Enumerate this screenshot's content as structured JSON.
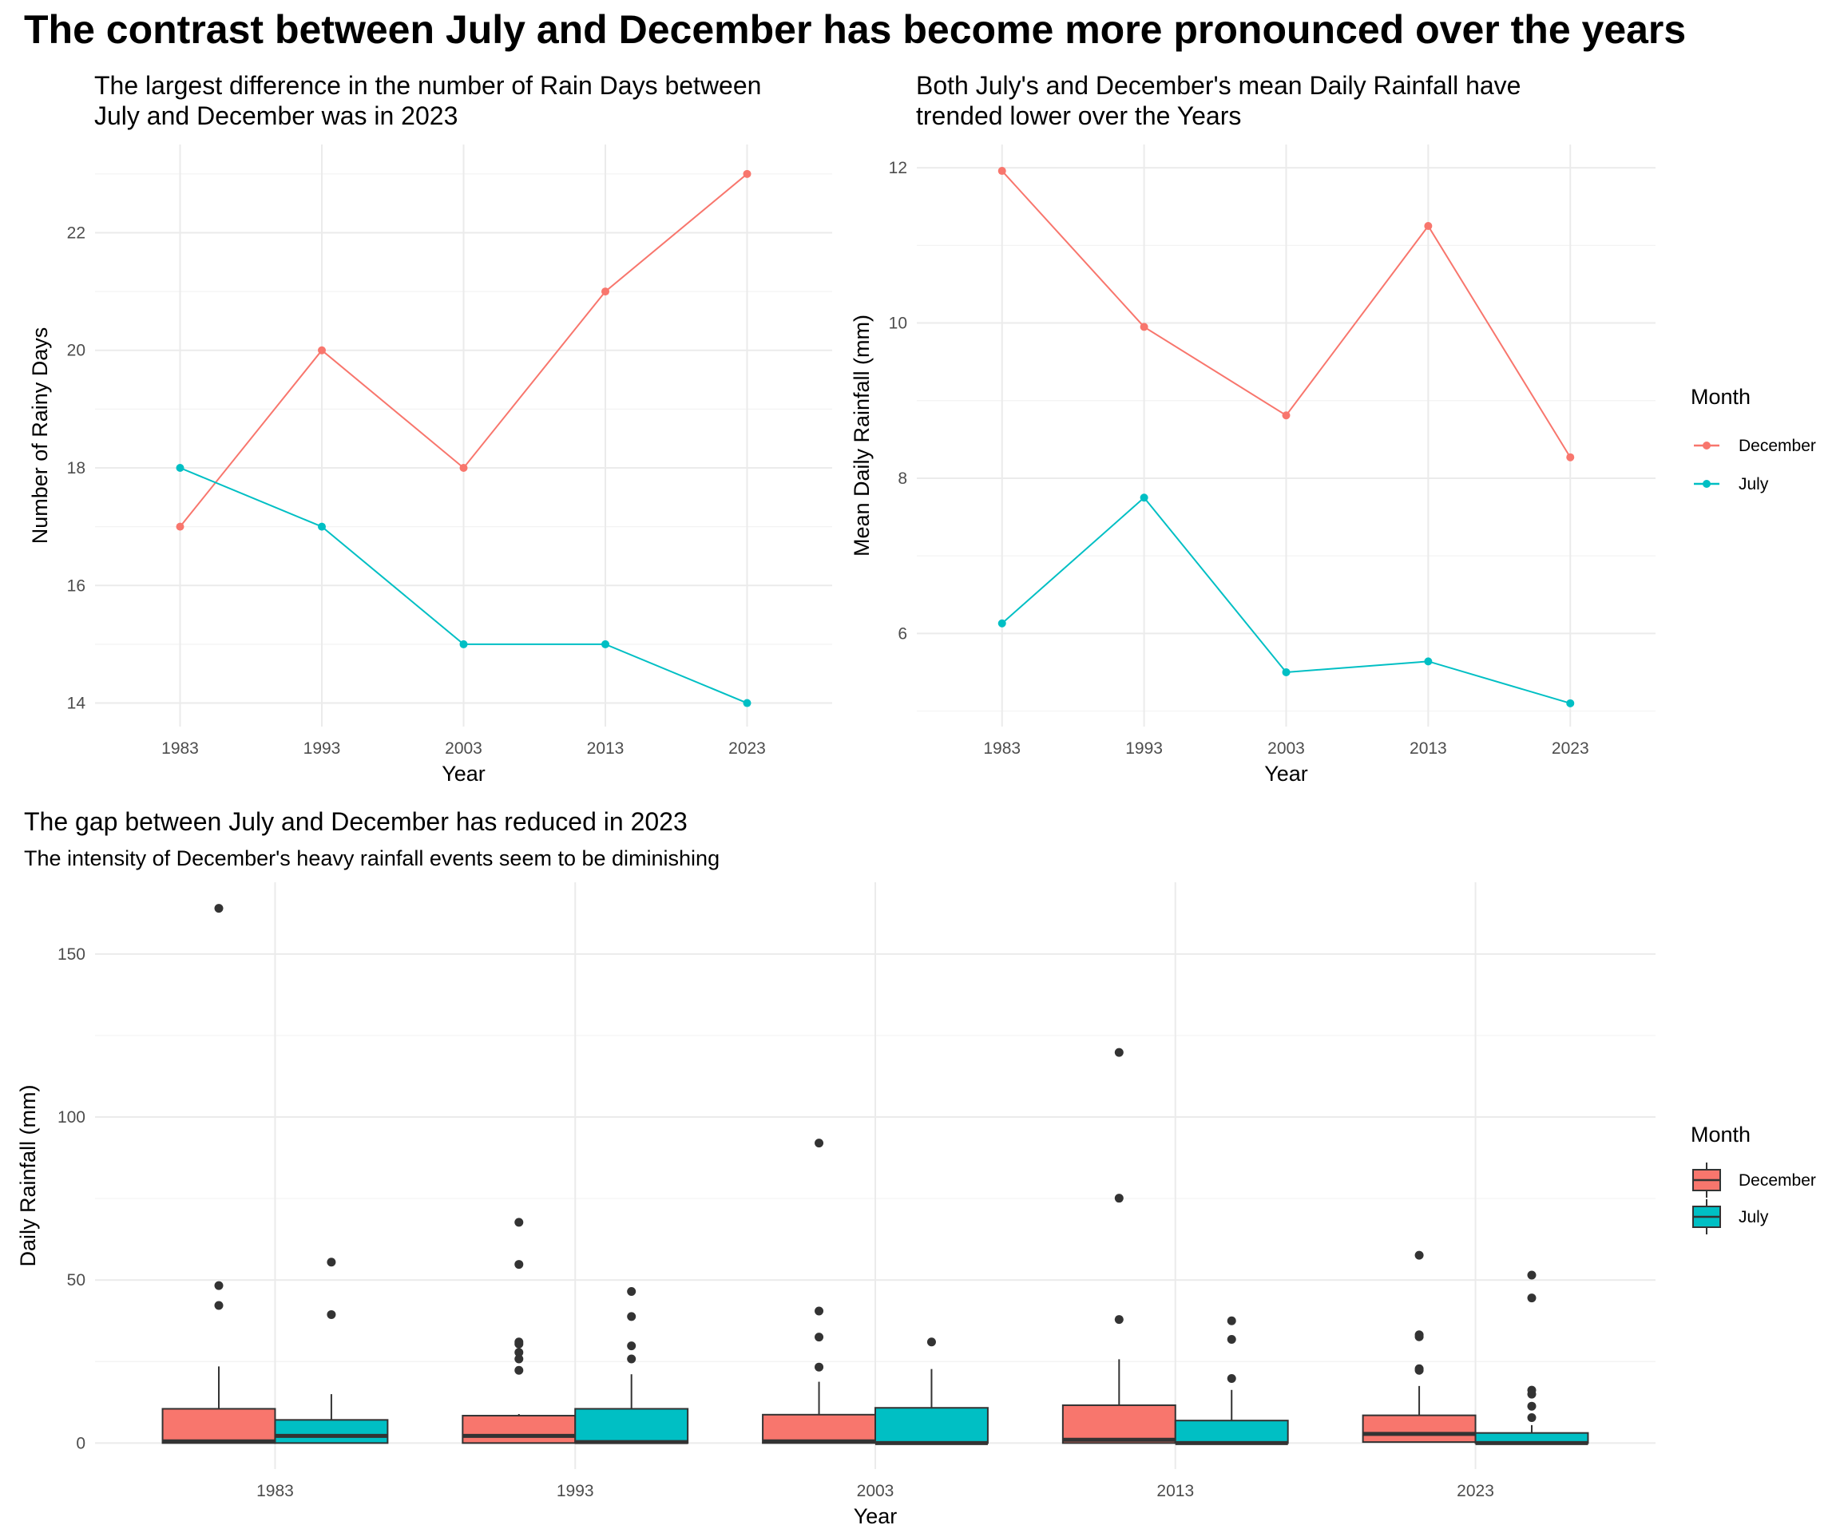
{
  "title": "The contrast between July and December has become more pronounced over the years",
  "colors": {
    "December": "#F8766D",
    "July": "#00BFC4",
    "outlier": "#333333"
  },
  "chart_data": [
    {
      "type": "line",
      "title": "The largest difference in the number of Rain Days between\nJuly and December was in 2023",
      "title_lines": [
        "The largest difference in the number of Rain Days between",
        "July and December was in 2023"
      ],
      "xlabel": "Year",
      "ylabel": "Number of Rainy Days",
      "x": [
        "1983",
        "1993",
        "2003",
        "2013",
        "2023"
      ],
      "yticks": [
        14,
        16,
        18,
        20,
        22
      ],
      "ylim": [
        13.6,
        23.5
      ],
      "grid": true,
      "series": [
        {
          "name": "December",
          "values": [
            17,
            20,
            18,
            21,
            23
          ]
        },
        {
          "name": "July",
          "values": [
            18,
            17,
            15,
            15,
            14
          ]
        }
      ]
    },
    {
      "type": "line",
      "title": "Both July's and December's mean Daily Rainfall have\ntrended lower over the Years",
      "title_lines": [
        "Both July's and December's mean Daily Rainfall have",
        "trended lower over the Years"
      ],
      "xlabel": "Year",
      "ylabel": "Mean Daily Rainfall (mm)",
      "x": [
        "1983",
        "1993",
        "2003",
        "2013",
        "2023"
      ],
      "yticks": [
        6,
        8,
        10,
        12
      ],
      "ylim": [
        4.8,
        12.3
      ],
      "grid": true,
      "legend": {
        "title": "Month",
        "entries": [
          "December",
          "July"
        ],
        "position": "right"
      },
      "series": [
        {
          "name": "December",
          "values": [
            11.96,
            9.95,
            8.81,
            11.25,
            8.27
          ]
        },
        {
          "name": "July",
          "values": [
            6.13,
            7.75,
            5.5,
            5.64,
            5.1
          ]
        }
      ]
    },
    {
      "type": "boxplot",
      "title": "The gap between July and December has reduced in 2023",
      "subtitle": "The intensity of December's heavy rainfall events seem to be diminishing",
      "xlabel": "Year",
      "ylabel": "Daily Rainfall (mm)",
      "categories": [
        "1983",
        "1993",
        "2003",
        "2013",
        "2023"
      ],
      "yticks": [
        0,
        50,
        100,
        150
      ],
      "ylim": [
        -8,
        172
      ],
      "grid": true,
      "legend": {
        "title": "Month",
        "entries": [
          "December",
          "July"
        ],
        "position": "right"
      },
      "series": [
        {
          "name": "December",
          "boxes": [
            {
              "q1": 0,
              "median": 0.5,
              "q3": 10.5,
              "whisker_low": 0,
              "whisker_high": 23.5,
              "outliers": [
                164,
                48.3,
                42.2
              ]
            },
            {
              "q1": 0,
              "median": 2.2,
              "q3": 8.4,
              "whisker_low": 0,
              "whisker_high": 8.9,
              "outliers": [
                67.7,
                54.8,
                31,
                30.4,
                27.8,
                25.8,
                22.3
              ]
            },
            {
              "q1": 0,
              "median": 0.5,
              "q3": 8.7,
              "whisker_low": 0,
              "whisker_high": 18.8,
              "outliers": [
                92,
                40.5,
                32.5,
                23.3
              ]
            },
            {
              "q1": 0,
              "median": 1.0,
              "q3": 11.6,
              "whisker_low": 0,
              "whisker_high": 25.7,
              "outliers": [
                119.8,
                75.1,
                37.9
              ]
            },
            {
              "q1": 0.3,
              "median": 2.8,
              "q3": 8.5,
              "whisker_low": 0.3,
              "whisker_high": 17.5,
              "outliers": [
                57.6,
                33.2,
                32.6,
                22.8,
                22.3
              ]
            }
          ]
        },
        {
          "name": "July",
          "boxes": [
            {
              "q1": 0,
              "median": 2.2,
              "q3": 7.1,
              "whisker_low": 0,
              "whisker_high": 15,
              "outliers": [
                55.5,
                39.4
              ]
            },
            {
              "q1": 0,
              "median": 0.3,
              "q3": 10.5,
              "whisker_low": 0,
              "whisker_high": 21.1,
              "outliers": [
                46.5,
                38.8,
                29.8,
                25.8
              ]
            },
            {
              "q1": 0,
              "median": 0,
              "q3": 10.8,
              "whisker_low": 0,
              "whisker_high": 22.7,
              "outliers": [
                31
              ]
            },
            {
              "q1": 0,
              "median": 0,
              "q3": 6.9,
              "whisker_low": 0,
              "whisker_high": 16.3,
              "outliers": [
                37.5,
                31.8,
                19.8
              ]
            },
            {
              "q1": 0,
              "median": 0,
              "q3": 3.1,
              "whisker_low": 0,
              "whisker_high": 5.5,
              "outliers": [
                51.5,
                44.5,
                16.2,
                15,
                11.3,
                7.8
              ]
            }
          ]
        }
      ]
    }
  ]
}
